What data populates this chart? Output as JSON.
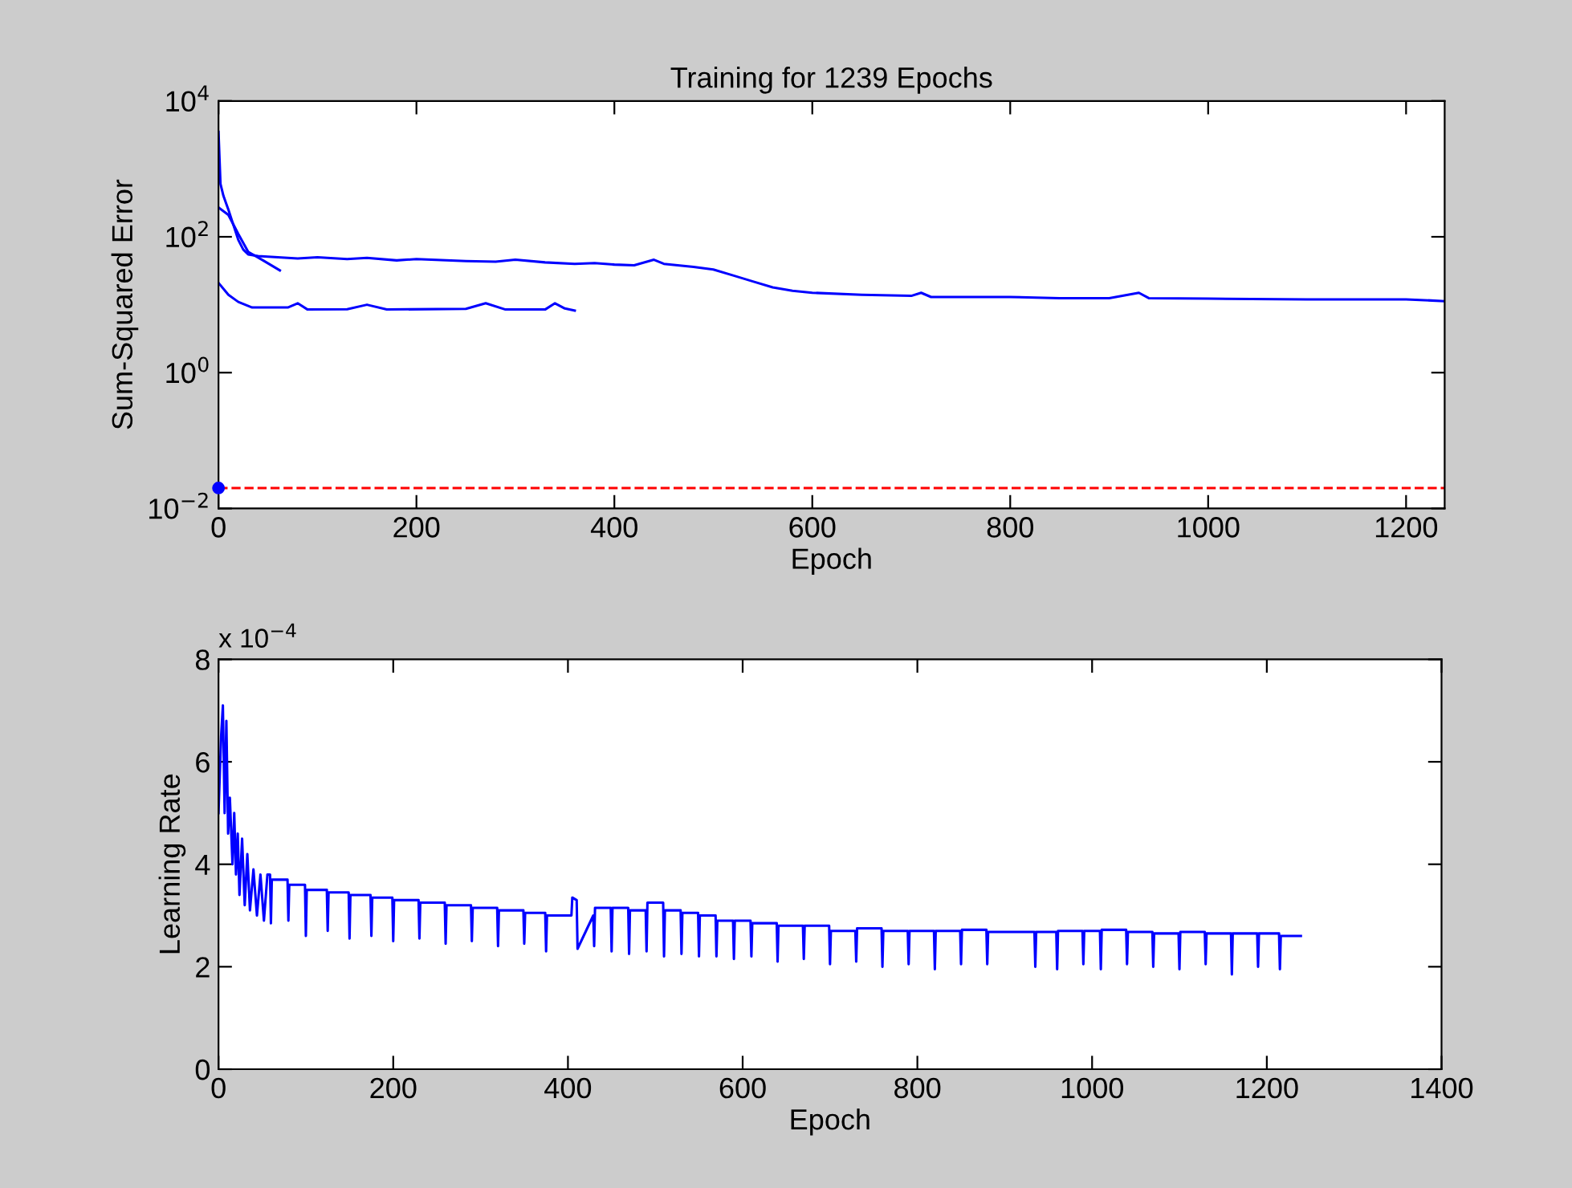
{
  "chart_data": [
    {
      "type": "line",
      "title": "Training for 1239 Epochs",
      "xlabel": "Epoch",
      "ylabel": "Sum-Squared Error",
      "log": "y",
      "xlim": [
        0,
        1239
      ],
      "xticks": [
        0,
        200,
        400,
        600,
        800,
        1000,
        1200
      ],
      "ylim": [
        0.01,
        10000
      ],
      "yticks": [
        {
          "value": 0.01,
          "label": "10$^{−2}$"
        },
        {
          "value": 1,
          "label": "10$^{0}$"
        },
        {
          "value": 100,
          "label": "10$^{2}$"
        },
        {
          "value": 10000,
          "label": "10$^{4}$"
        }
      ],
      "grid": false,
      "legend": false,
      "series": [
        {
          "color": "#0000ff",
          "x": [
            0,
            2,
            5,
            10,
            15,
            20,
            25,
            30,
            40,
            60,
            80,
            100,
            130,
            150,
            180,
            200,
            250,
            280,
            300,
            330,
            360,
            380,
            400,
            420,
            440,
            450,
            480,
            500,
            520,
            540,
            560,
            580,
            600,
            650,
            700,
            710,
            720,
            800,
            850,
            900,
            930,
            940,
            1000,
            1100,
            1200,
            1239
          ],
          "values": [
            3500,
            600,
            400,
            250,
            150,
            90,
            65,
            55,
            52,
            50,
            48,
            50,
            47,
            49,
            45,
            47,
            44,
            43,
            46,
            42,
            40,
            41,
            39,
            38,
            46,
            40,
            36,
            33,
            27,
            22,
            18,
            16,
            15,
            14,
            13.5,
            15,
            13,
            13,
            12.5,
            12.5,
            15,
            12.5,
            12.3,
            12,
            12,
            11.3
          ]
        },
        {
          "color": "#0000ff",
          "x": [
            0,
            10,
            20,
            34,
            70,
            80,
            90,
            130,
            150,
            170,
            250,
            270,
            290,
            330,
            340,
            350,
            360
          ],
          "values": [
            21,
            14,
            11,
            9.1,
            9.1,
            10.5,
            8.5,
            8.6,
            10,
            8.5,
            8.7,
            10.5,
            8.5,
            8.5,
            10.5,
            8.8,
            8.2
          ]
        },
        {
          "color": "#0000ff",
          "x": [
            0,
            10,
            20,
            30,
            45,
            62
          ],
          "values": [
            270,
            210,
            110,
            60,
            45,
            32
          ]
        },
        {
          "type": "scatter",
          "color": "#0000ff",
          "marker": "circle",
          "x": [
            0
          ],
          "values": [
            0.02
          ]
        }
      ],
      "ref_lines": [
        {
          "axis": "y",
          "value": 0.02,
          "color": "#ff0000",
          "line_style": "dashed"
        }
      ]
    },
    {
      "type": "line",
      "xlabel": "Epoch",
      "ylabel": "Learning Rate",
      "xlim": [
        0,
        1400
      ],
      "xticks": [
        0,
        200,
        400,
        600,
        800,
        1000,
        1200,
        1400
      ],
      "ylim": [
        0,
        8
      ],
      "yticks": [
        0,
        2,
        4,
        6,
        8
      ],
      "grid": false,
      "legend": false,
      "annotations": [
        "x 10$^{−4}$"
      ],
      "series": [
        {
          "color": "#0000ff",
          "x": [
            0,
            3,
            5,
            7,
            9,
            11,
            13,
            16,
            18,
            20,
            22,
            24,
            27,
            30,
            33,
            36,
            40,
            44,
            48,
            52,
            56,
            59,
            60,
            61,
            79,
            80,
            81,
            99,
            100,
            101,
            124,
            125,
            126,
            149,
            150,
            151,
            174,
            175,
            176,
            199,
            200,
            201,
            229,
            230,
            231,
            259,
            260,
            261,
            289,
            290,
            291,
            319,
            320,
            321,
            349,
            350,
            351,
            374,
            375,
            376,
            404,
            405,
            410,
            411,
            429,
            430,
            431,
            449,
            450,
            451,
            469,
            470,
            471,
            489,
            490,
            491,
            509,
            510,
            511,
            529,
            530,
            531,
            549,
            550,
            551,
            569,
            570,
            571,
            589,
            590,
            591,
            609,
            610,
            611,
            639,
            640,
            641,
            669,
            670,
            671,
            699,
            700,
            701,
            729,
            730,
            731,
            759,
            760,
            761,
            789,
            790,
            791,
            819,
            820,
            821,
            849,
            850,
            851,
            879,
            880,
            881,
            934,
            935,
            936,
            959,
            960,
            961,
            989,
            990,
            991,
            1009,
            1010,
            1011,
            1039,
            1040,
            1041,
            1069,
            1070,
            1071,
            1099,
            1100,
            1101,
            1129,
            1130,
            1131,
            1159,
            1160,
            1161,
            1189,
            1190,
            1191,
            1214,
            1215,
            1216,
            1239
          ],
          "values": [
            5.0,
            6.5,
            7.1,
            5.0,
            6.8,
            4.6,
            5.3,
            4.0,
            5.0,
            3.8,
            4.6,
            3.4,
            4.5,
            3.2,
            4.2,
            3.1,
            3.9,
            3.0,
            3.8,
            2.9,
            3.8,
            3.8,
            2.85,
            3.7,
            3.7,
            2.9,
            3.6,
            3.6,
            2.6,
            3.5,
            3.5,
            2.7,
            3.45,
            3.45,
            2.55,
            3.4,
            3.4,
            2.6,
            3.35,
            3.35,
            2.5,
            3.3,
            3.3,
            2.55,
            3.25,
            3.25,
            2.45,
            3.2,
            3.2,
            2.5,
            3.15,
            3.15,
            2.4,
            3.1,
            3.1,
            2.45,
            3.05,
            3.05,
            2.3,
            3.0,
            3.0,
            3.35,
            3.3,
            2.35,
            3.0,
            2.4,
            3.15,
            3.15,
            2.3,
            3.15,
            3.15,
            2.25,
            3.1,
            3.1,
            2.3,
            3.25,
            3.25,
            2.2,
            3.1,
            3.1,
            2.25,
            3.05,
            3.05,
            2.2,
            3.0,
            3.0,
            2.2,
            2.9,
            2.9,
            2.15,
            2.9,
            2.9,
            2.2,
            2.85,
            2.85,
            2.1,
            2.8,
            2.8,
            2.15,
            2.8,
            2.8,
            2.05,
            2.7,
            2.7,
            2.1,
            2.75,
            2.75,
            2.0,
            2.7,
            2.7,
            2.05,
            2.7,
            2.7,
            1.95,
            2.7,
            2.7,
            2.05,
            2.72,
            2.72,
            2.05,
            2.68,
            2.68,
            2.0,
            2.68,
            2.68,
            1.95,
            2.7,
            2.7,
            2.05,
            2.7,
            2.7,
            1.95,
            2.72,
            2.72,
            2.05,
            2.68,
            2.68,
            2.0,
            2.65,
            2.65,
            1.95,
            2.68,
            2.68,
            2.05,
            2.65,
            2.65,
            1.85,
            2.65,
            2.65,
            2.0,
            2.65,
            2.65,
            1.95,
            2.6,
            2.6
          ]
        }
      ]
    }
  ]
}
